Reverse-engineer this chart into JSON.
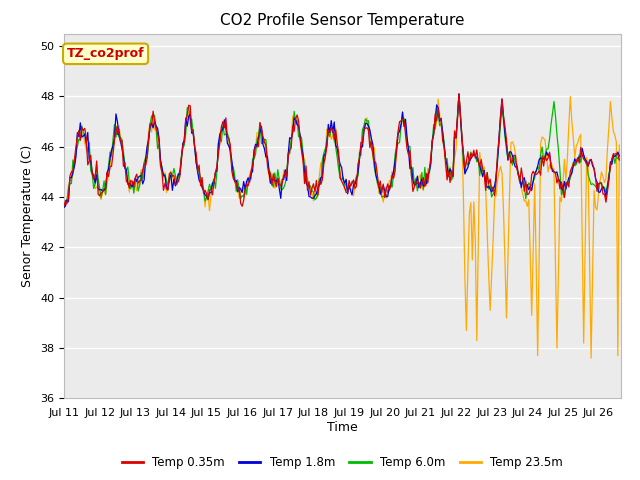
{
  "title": "CO2 Profile Sensor Temperature",
  "xlabel": "Time",
  "ylabel": "Senor Temperature (C)",
  "ylim": [
    36,
    50.5
  ],
  "xlim": [
    0,
    375
  ],
  "xtick_labels": [
    "Jul 11",
    "Jul 12",
    "Jul 13",
    "Jul 14",
    "Jul 15",
    "Jul 16",
    "Jul 17",
    "Jul 18",
    "Jul 19",
    "Jul 20",
    "Jul 21",
    "Jul 22",
    "Jul 23",
    "Jul 24",
    "Jul 25",
    "Jul 26"
  ],
  "ytick_values": [
    36,
    38,
    40,
    42,
    44,
    46,
    48,
    50
  ],
  "legend_entries": [
    "Temp 0.35m",
    "Temp 1.8m",
    "Temp 6.0m",
    "Temp 23.5m"
  ],
  "legend_colors": [
    "#dd0000",
    "#0000dd",
    "#00bb00",
    "#ffaa00"
  ],
  "annotation_text": "TZ_co2prof",
  "annotation_bg": "#ffffcc",
  "annotation_border": "#ccaa00",
  "annotation_text_color": "#cc0000",
  "fig_bg": "#ffffff",
  "plot_bg": "#ebebeb",
  "title_fontsize": 11,
  "axis_label_fontsize": 9,
  "tick_fontsize": 8
}
